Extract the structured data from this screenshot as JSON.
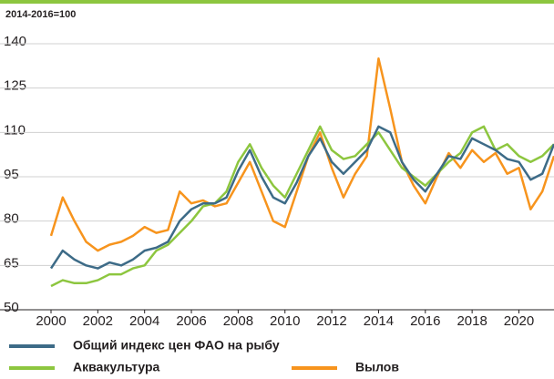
{
  "chart_data": {
    "type": "line",
    "subtitle": "2014-2016=100",
    "x": [
      2000,
      2000.5,
      2001,
      2001.5,
      2002,
      2002.5,
      2003,
      2003.5,
      2004,
      2004.5,
      2005,
      2005.5,
      2006,
      2006.5,
      2007,
      2007.5,
      2008,
      2008.5,
      2009,
      2009.5,
      2010,
      2010.5,
      2011,
      2011.5,
      2012,
      2012.5,
      2013,
      2013.5,
      2014,
      2014.5,
      2015,
      2015.5,
      2016,
      2016.5,
      2017,
      2017.5,
      2018,
      2018.5,
      2019,
      2019.5,
      2020,
      2020.5,
      2021,
      2021.5
    ],
    "series": [
      {
        "name": "Общий индекс цен ФАО на рыбу",
        "color": "#3d6b87",
        "values": [
          64,
          70,
          67,
          65,
          64,
          66,
          65,
          67,
          70,
          71,
          73,
          80,
          84,
          86,
          86,
          88,
          97,
          104,
          95,
          88,
          86,
          93,
          102,
          108,
          100,
          96,
          100,
          104,
          112,
          110,
          100,
          94,
          90,
          96,
          102,
          101,
          108,
          106,
          104,
          101,
          100,
          94,
          96,
          106
        ]
      },
      {
        "name": "Аквакультура",
        "color": "#8dc63f",
        "values": [
          58,
          60,
          59,
          59,
          60,
          62,
          62,
          64,
          65,
          70,
          72,
          76,
          80,
          85,
          86,
          90,
          100,
          106,
          98,
          92,
          88,
          96,
          104,
          112,
          104,
          101,
          102,
          106,
          110,
          104,
          98,
          95,
          92,
          96,
          100,
          103,
          110,
          112,
          104,
          106,
          102,
          100,
          102,
          106
        ]
      },
      {
        "name": "Вылов",
        "color": "#f7941d",
        "values": [
          75,
          88,
          80,
          73,
          70,
          72,
          73,
          75,
          78,
          76,
          77,
          90,
          86,
          87,
          85,
          86,
          93,
          100,
          90,
          80,
          78,
          90,
          102,
          110,
          98,
          88,
          96,
          102,
          135,
          118,
          100,
          92,
          86,
          95,
          103,
          98,
          104,
          100,
          103,
          96,
          98,
          84,
          90,
          102
        ]
      }
    ],
    "xlim": [
      2000,
      2021.5
    ],
    "ylim": [
      50,
      140
    ],
    "xticks": [
      2000,
      2002,
      2004,
      2006,
      2008,
      2010,
      2012,
      2014,
      2016,
      2018,
      2020
    ],
    "yticks": [
      50,
      65,
      80,
      95,
      110,
      125,
      140
    ],
    "grid": true
  }
}
